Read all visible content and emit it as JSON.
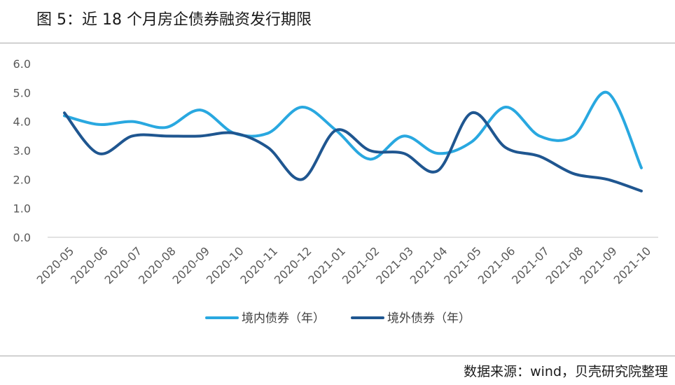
{
  "title": "图 5：近 18 个月房企债券融资发行期限",
  "source": "数据来源：wind，贝壳研究院整理",
  "colors": {
    "domestic": "#29a8e0",
    "overseas": "#1f5690",
    "axis": "#d9d9d9",
    "tick_text": "#595959"
  },
  "chart_data": {
    "type": "line",
    "title": "图 5：近 18 个月房企债券融资发行期限",
    "xlabel": "",
    "ylabel": "",
    "ylim": [
      0,
      6
    ],
    "y_ticks": [
      "0.0",
      "1.0",
      "2.0",
      "3.0",
      "4.0",
      "5.0",
      "6.0"
    ],
    "grid": false,
    "legend_position": "bottom",
    "categories": [
      "2020-05",
      "2020-06",
      "2020-07",
      "2020-08",
      "2020-09",
      "2020-10",
      "2020-11",
      "2020-12",
      "2021-01",
      "2021-02",
      "2021-03",
      "2021-04",
      "2021-05",
      "2021-06",
      "2021-07",
      "2021-08",
      "2021-09",
      "2021-10"
    ],
    "series": [
      {
        "name": "境内债券（年）",
        "values": [
          4.2,
          3.9,
          4.0,
          3.8,
          4.4,
          3.6,
          3.6,
          4.5,
          3.7,
          2.7,
          3.5,
          2.9,
          3.3,
          4.5,
          3.5,
          3.5,
          5.0,
          2.4
        ]
      },
      {
        "name": "境外债券（年）",
        "values": [
          4.3,
          2.9,
          3.5,
          3.5,
          3.5,
          3.6,
          3.1,
          2.0,
          3.7,
          3.0,
          2.9,
          2.3,
          4.3,
          3.1,
          2.8,
          2.2,
          2.0,
          1.6
        ]
      }
    ]
  }
}
